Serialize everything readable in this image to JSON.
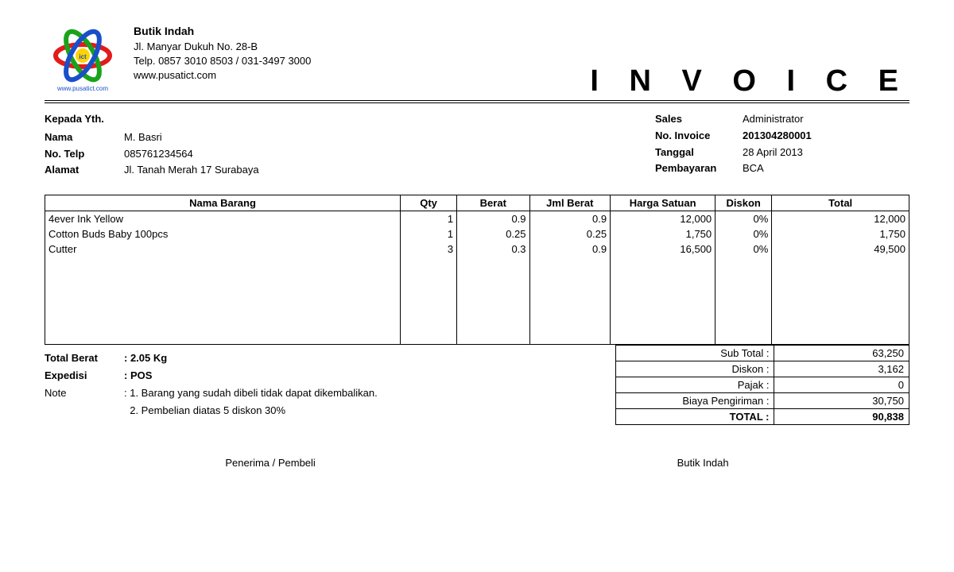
{
  "company": {
    "logo_text": "www.pusatict.com",
    "name": "Butik Indah",
    "address": "Jl. Manyar Dukuh No. 28-B",
    "phone": "Telp. 0857 3010 8503 / 031-3497 3000",
    "website": "www.pusatict.com"
  },
  "title": "I N V O I C E",
  "customer": {
    "heading": "Kepada Yth.",
    "labels": {
      "name": "Nama",
      "phone": "No. Telp",
      "address": "Alamat"
    },
    "name": "M. Basri",
    "phone": "085761234564",
    "address": "Jl. Tanah Merah 17 Surabaya"
  },
  "invoice_meta": {
    "labels": {
      "sales": "Sales",
      "no": "No. Invoice",
      "date": "Tanggal",
      "payment": "Pembayaran"
    },
    "sales": "Administrator",
    "no": "201304280001",
    "date": "28 April 2013",
    "payment": "BCA"
  },
  "table": {
    "headers": {
      "name": "Nama Barang",
      "qty": "Qty",
      "berat": "Berat",
      "jml": "Jml Berat",
      "harga": "Harga Satuan",
      "diskon": "Diskon",
      "total": "Total"
    },
    "rows": [
      {
        "name": "4ever Ink Yellow",
        "qty": "1",
        "berat": "0.9",
        "jml": "0.9",
        "harga": "12,000",
        "diskon": "0%",
        "total": "12,000"
      },
      {
        "name": "Cotton Buds Baby 100pcs",
        "qty": "1",
        "berat": "0.25",
        "jml": "0.25",
        "harga": "1,750",
        "diskon": "0%",
        "total": "1,750"
      },
      {
        "name": "Cutter",
        "qty": "3",
        "berat": "0.3",
        "jml": "0.9",
        "harga": "16,500",
        "diskon": "0%",
        "total": "49,500"
      }
    ]
  },
  "below": {
    "total_berat_label": "Total Berat",
    "total_berat_value": ": 2.05 Kg",
    "expedisi_label": "Expedisi",
    "expedisi_value": ": POS",
    "note_label": "Note",
    "note_line1": ": 1. Barang yang sudah dibeli tidak dapat dikembalikan.",
    "note_line2": "  2. Pembelian diatas 5 diskon 30%"
  },
  "totals": {
    "rows": [
      {
        "label": "Sub Total :",
        "value": "63,250"
      },
      {
        "label": "Diskon :",
        "value": "3,162"
      },
      {
        "label": "Pajak :",
        "value": "0"
      },
      {
        "label": "Biaya Pengiriman :",
        "value": "30,750"
      }
    ],
    "final": {
      "label": "TOTAL :",
      "value": "90,838"
    }
  },
  "signatures": {
    "left": "Penerima / Pembeli",
    "right": "Butik Indah"
  }
}
